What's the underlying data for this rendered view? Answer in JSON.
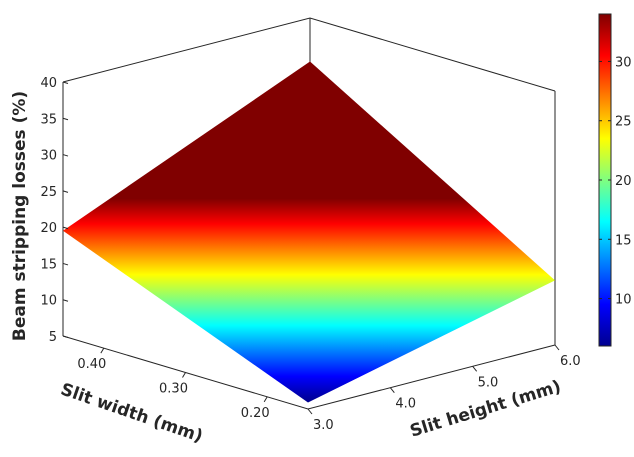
{
  "chart_data": {
    "type": "surface3d",
    "title": "",
    "x_axis": {
      "label": "Slit width (mm)",
      "ticks": [
        "0.20",
        "0.30",
        "0.40"
      ],
      "range": [
        0.15,
        0.45
      ]
    },
    "y_axis": {
      "label": "Slit height (mm)",
      "ticks": [
        "3.0",
        "4.0",
        "5.0",
        "6.0"
      ],
      "range": [
        3.0,
        6.0
      ]
    },
    "z_axis": {
      "label": "Beam stripping losses (%)",
      "ticks": [
        "5",
        "10",
        "15",
        "20",
        "25",
        "30",
        "35",
        "40"
      ],
      "range": [
        5,
        40
      ]
    },
    "surface_corners": [
      {
        "slit_width": 0.15,
        "slit_height": 3.0,
        "loss": 5.9
      },
      {
        "slit_width": 0.45,
        "slit_height": 3.0,
        "loss": 19.5
      },
      {
        "slit_width": 0.15,
        "slit_height": 6.0,
        "loss": 13.9
      },
      {
        "slit_width": 0.45,
        "slit_height": 6.0,
        "loss": 34.0
      }
    ],
    "colorbar": {
      "ticks": [
        "10",
        "15",
        "20",
        "25",
        "30"
      ],
      "range": [
        6,
        34
      ],
      "colormap": "jet"
    },
    "grid": false
  }
}
